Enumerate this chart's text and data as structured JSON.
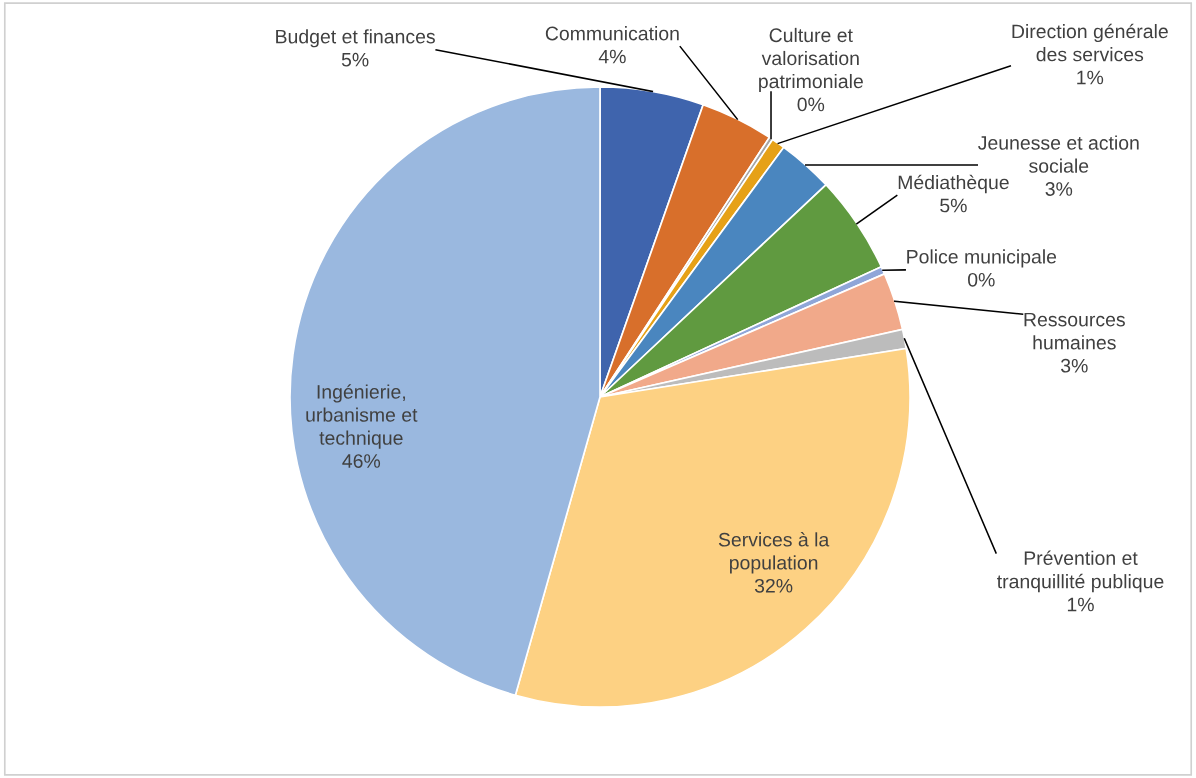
{
  "chart_data": {
    "type": "pie",
    "categories": [
      "Budget et finances",
      "Communication",
      "Culture et\nvalorisation\npatrimoniale",
      "Direction générale\ndes services",
      "Jeunesse et action\nsociale",
      "Médiathèque",
      "Police municipale",
      "Ressources\nhumaines",
      "Prévention et\ntranquillité publique",
      "Services à la\npopulation",
      "Ingénierie,\nurbanisme et\ntechnique"
    ],
    "values": [
      5.4,
      3.8,
      0.2,
      0.7,
      2.9,
      5.1,
      0.4,
      3.0,
      1.0,
      31.9,
      45.6
    ],
    "value_labels": [
      "5%",
      "4%",
      "0%",
      "1%",
      "3%",
      "5%",
      "0%",
      "3%",
      "1%",
      "32%",
      "46%"
    ],
    "colors": [
      "#3f64ad",
      "#d86f2b",
      "#a5a5a5",
      "#e6a117",
      "#4a86bf",
      "#609a40",
      "#8fa6d8",
      "#f1a98a",
      "#bcbcbc",
      "#fdd183",
      "#9ab8df"
    ],
    "legend": false
  }
}
